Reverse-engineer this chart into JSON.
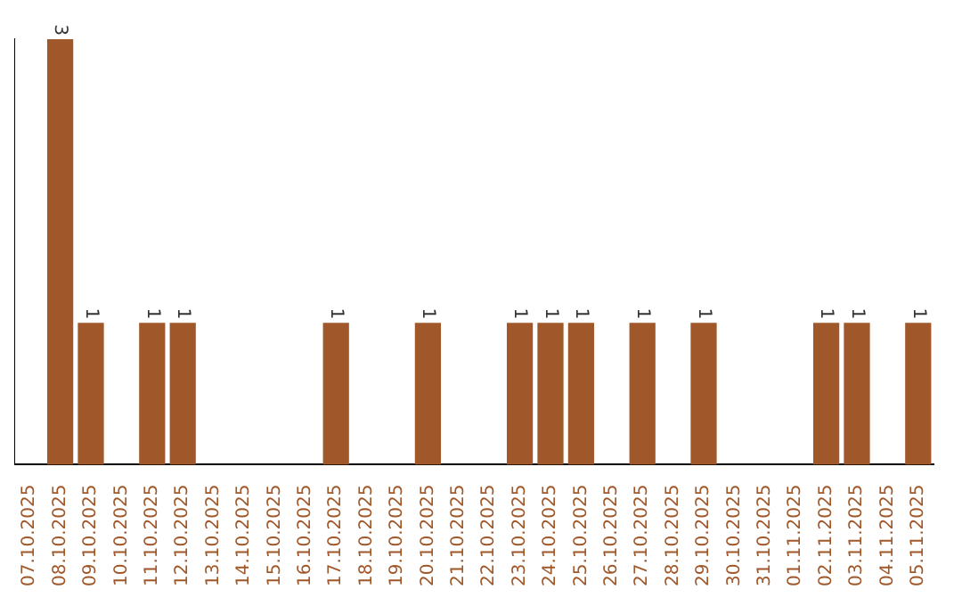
{
  "chart_data": {
    "type": "bar",
    "categories": [
      "07.10.2025",
      "08.10.2025",
      "09.10.2025",
      "10.10.2025",
      "11.10.2025",
      "12.10.2025",
      "13.10.2025",
      "14.10.2025",
      "15.10.2025",
      "16.10.2025",
      "17.10.2025",
      "18.10.2025",
      "19.10.2025",
      "20.10.2025",
      "21.10.2025",
      "22.10.2025",
      "23.10.2025",
      "24.10.2025",
      "25.10.2025",
      "26.10.2025",
      "27.10.2025",
      "28.10.2025",
      "29.10.2025",
      "30.10.2025",
      "31.10.2025",
      "01.11.2025",
      "02.11.2025",
      "03.11.2025",
      "04.11.2025",
      "05.11.2025"
    ],
    "values": [
      0,
      3,
      1,
      0,
      1,
      1,
      0,
      0,
      0,
      0,
      1,
      0,
      0,
      1,
      0,
      0,
      1,
      1,
      1,
      0,
      1,
      0,
      1,
      0,
      0,
      0,
      1,
      1,
      0,
      1
    ],
    "value_labels": [
      null,
      "3",
      "1",
      null,
      "1",
      "1",
      null,
      null,
      null,
      null,
      "1",
      null,
      null,
      "1",
      null,
      null,
      "1",
      "1",
      "1",
      null,
      "1",
      null,
      "1",
      null,
      null,
      null,
      "1",
      "1",
      null,
      "1"
    ],
    "color": "#a0582a",
    "relative": false,
    "tick_labels": "x",
    "grid": false,
    "legend": false
  }
}
